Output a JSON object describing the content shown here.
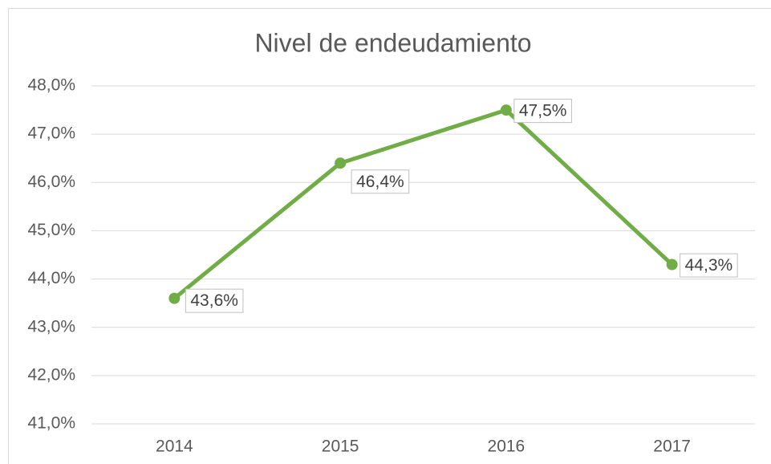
{
  "chart_data": {
    "type": "line",
    "title": "Nivel de endeudamiento",
    "categories": [
      "2014",
      "2015",
      "2016",
      "2017"
    ],
    "values": [
      43.6,
      46.4,
      47.5,
      44.3
    ],
    "value_labels": [
      "43,6%",
      "46,4%",
      "47,5%",
      "44,3%"
    ],
    "color": "#70ad47",
    "ylim": [
      41,
      48
    ],
    "yticks": [
      {
        "value": 41,
        "label": "41,0%"
      },
      {
        "value": 42,
        "label": "42,0%"
      },
      {
        "value": 43,
        "label": "43,0%"
      },
      {
        "value": 44,
        "label": "44,0%"
      },
      {
        "value": 45,
        "label": "45,0%"
      },
      {
        "value": 46,
        "label": "46,0%"
      },
      {
        "value": 47,
        "label": "47,0%"
      },
      {
        "value": 48,
        "label": "48,0%"
      }
    ],
    "grid": true
  }
}
